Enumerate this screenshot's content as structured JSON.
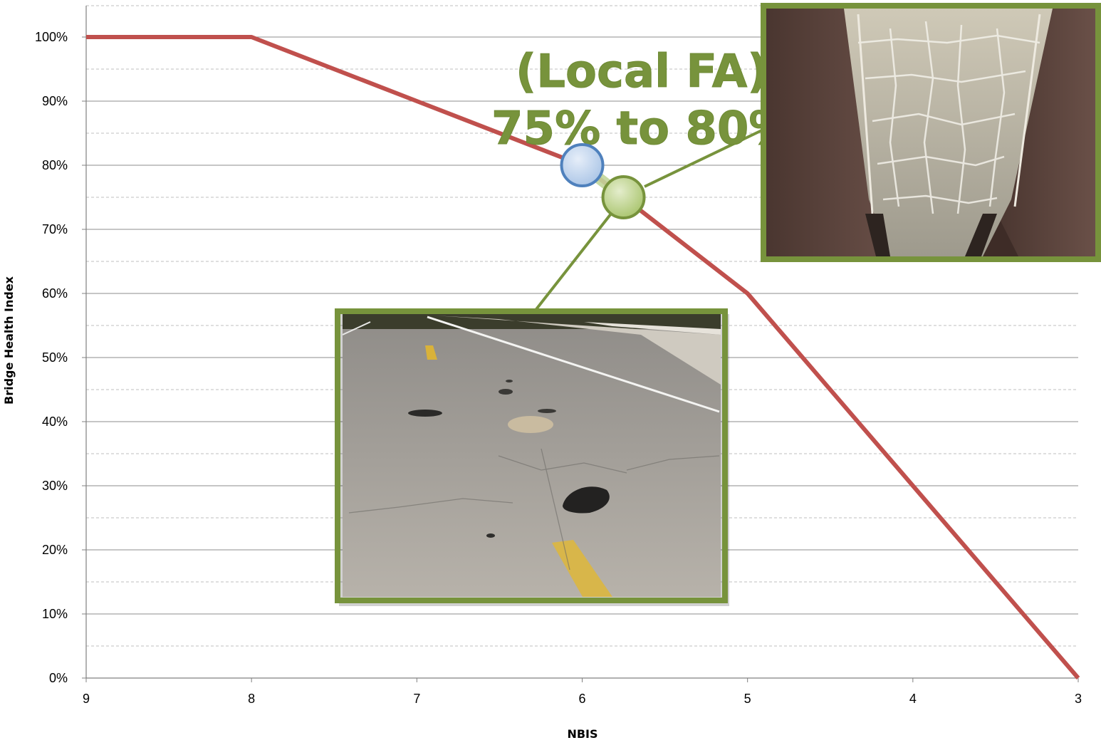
{
  "chart_data": {
    "type": "line",
    "xlabel": "NBIS",
    "ylabel": "Bridge Health Index",
    "x_ticks": [
      "9",
      "8",
      "7",
      "6",
      "5",
      "4",
      "3"
    ],
    "y_ticks": [
      "0%",
      "10%",
      "20%",
      "30%",
      "40%",
      "50%",
      "60%",
      "70%",
      "80%",
      "90%",
      "100%"
    ],
    "xlim": [
      9,
      3
    ],
    "ylim": [
      0,
      100
    ],
    "x_reversed": true,
    "grid": true,
    "series": [
      {
        "color": "#c0504d",
        "x": [
          9,
          8,
          7,
          6,
          5,
          4,
          3
        ],
        "y": [
          100,
          100,
          90,
          80,
          60,
          30,
          0
        ]
      }
    ],
    "markers": [
      {
        "x": 6,
        "y": 80,
        "color": "#4f81bd",
        "fill": "#c6d9f1"
      },
      {
        "x": 5.75,
        "y": 75,
        "color": "#77933c",
        "fill": "#c3d69b"
      }
    ],
    "annotation": {
      "line1": "(Local FA)",
      "line2": "75% to 80%",
      "color": "#77933c"
    },
    "photos": [
      {
        "name": "bridge-underside-deck-photo",
        "border": "#77933c"
      },
      {
        "name": "bridge-road-surface-photo",
        "border": "#77933c"
      }
    ]
  }
}
